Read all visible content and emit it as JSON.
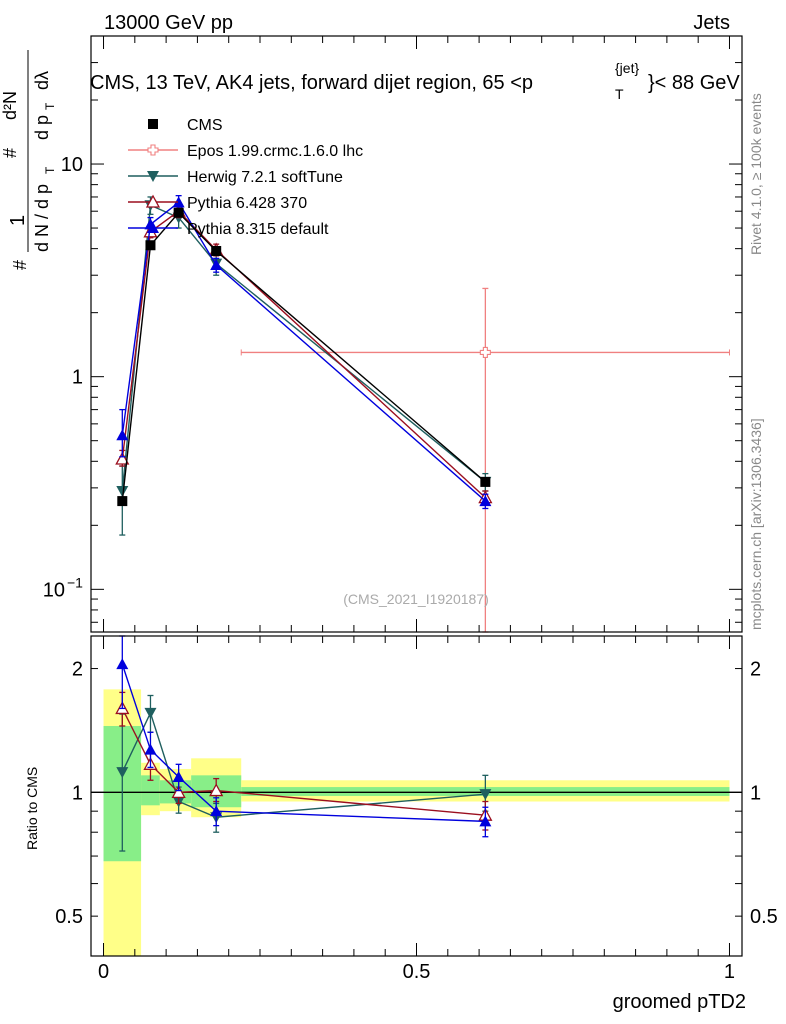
{
  "header": {
    "energy_label": "13000 GeV pp",
    "category_label": "Jets",
    "title_main": "CMS, 13 TeV, AK4 jets, forward dijet region, 65 <p",
    "title_sup": "{jet}",
    "title_sub": "T",
    "title_end": "}< 88 GeV",
    "watermark": "(CMS_2021_I1920187)"
  },
  "side_labels": {
    "rivet": "Rivet 4.1.0, ≥ 100k events",
    "mcplots": "mcplots.cern.ch [arXiv:1306.3436]"
  },
  "colors": {
    "cms": "#000000",
    "epos": "#f08080",
    "herwig": "#1f5f5f",
    "pythia6": "#9b0f1f",
    "pythia8": "#0000dd",
    "band_inner": "#88ee88",
    "band_outer": "#ffff88"
  },
  "chart_data": [
    {
      "type": "scatter",
      "panel": "main",
      "ylabel": "1/N dN/dp_T dλ (#/# d²N/dp_T dλ)",
      "yscale": "log",
      "ylim": [
        0.063,
        40
      ],
      "xlim": [
        -0.02,
        1.02
      ],
      "y_ticks": [
        {
          "value": 0.1,
          "label": "10",
          "exp": "−1"
        },
        {
          "value": 1,
          "label": "1",
          "exp": ""
        },
        {
          "value": 10,
          "label": "10",
          "exp": ""
        }
      ],
      "legend": [
        {
          "key": "cms",
          "label": "CMS"
        },
        {
          "key": "epos",
          "label": "Epos 1.99.crmc.1.6.0 lhc"
        },
        {
          "key": "herwig",
          "label": "Herwig 7.2.1 softTune"
        },
        {
          "key": "pythia6",
          "label": "Pythia 6.428 370"
        },
        {
          "key": "pythia8",
          "label": "Pythia 8.315 default"
        }
      ],
      "series": [
        {
          "key": "cms",
          "name": "CMS",
          "marker": "square",
          "x": [
            0.03,
            0.075,
            0.12,
            0.18,
            0.61
          ],
          "y": [
            0.26,
            4.15,
            5.9,
            3.9,
            0.32
          ]
        },
        {
          "key": "epos",
          "name": "Epos 1.99.crmc.1.6.0 lhc",
          "marker": "open-cross",
          "x": [
            0.61
          ],
          "y": [
            1.3
          ],
          "xerr_low": [
            0.22
          ],
          "xerr_high": [
            1.0
          ],
          "yerr_low": [
            0.0
          ],
          "yerr_high": [
            2.6
          ]
        },
        {
          "key": "herwig",
          "name": "Herwig 7.2.1 softTune",
          "marker": "triangle-down",
          "x": [
            0.03,
            0.075,
            0.12,
            0.18,
            0.61
          ],
          "y": [
            0.29,
            6.4,
            5.6,
            3.4,
            0.32
          ],
          "yerr_low": [
            0.18,
            5.8,
            5.0,
            3.0,
            0.29
          ],
          "yerr_high": [
            0.38,
            7.0,
            6.3,
            3.8,
            0.35
          ]
        },
        {
          "key": "pythia6",
          "name": "Pythia 6.428 370",
          "marker": "open-triangle-up",
          "x": [
            0.03,
            0.075,
            0.12,
            0.18,
            0.61
          ],
          "y": [
            0.41,
            4.8,
            6.0,
            3.95,
            0.27
          ],
          "yerr_low": [
            0.38,
            4.5,
            5.6,
            3.7,
            0.25
          ],
          "yerr_high": [
            0.45,
            5.1,
            6.4,
            4.2,
            0.29
          ]
        },
        {
          "key": "pythia8",
          "name": "Pythia 8.315 default",
          "marker": "triangle-up",
          "x": [
            0.03,
            0.075,
            0.12,
            0.18,
            0.61
          ],
          "y": [
            0.53,
            5.2,
            6.6,
            3.35,
            0.26
          ],
          "yerr_low": [
            0.42,
            4.8,
            6.1,
            3.1,
            0.24
          ],
          "yerr_high": [
            0.7,
            5.6,
            7.1,
            3.6,
            0.28
          ]
        }
      ]
    },
    {
      "type": "scatter",
      "panel": "ratio",
      "ylabel": "Ratio to CMS",
      "xlabel": "groomed pTD2",
      "yscale": "log",
      "ylim": [
        0.4,
        2.4
      ],
      "xlim": [
        -0.02,
        1.02
      ],
      "y_ticks": [
        {
          "value": 0.5,
          "label": "0.5"
        },
        {
          "value": 1,
          "label": "1"
        },
        {
          "value": 2,
          "label": "2"
        }
      ],
      "x_ticks": [
        {
          "value": 0,
          "label": "0"
        },
        {
          "value": 0.5,
          "label": "0.5"
        },
        {
          "value": 1,
          "label": "1"
        }
      ],
      "bands": [
        {
          "x_low": 0.0,
          "x_high": 0.06,
          "outer": [
            0.36,
            1.78
          ],
          "inner": [
            0.68,
            1.45
          ]
        },
        {
          "x_low": 0.06,
          "x_high": 0.09,
          "outer": [
            0.88,
            1.18
          ],
          "inner": [
            0.93,
            1.1
          ]
        },
        {
          "x_low": 0.09,
          "x_high": 0.14,
          "outer": [
            0.9,
            1.14
          ],
          "inner": [
            0.94,
            1.07
          ]
        },
        {
          "x_low": 0.14,
          "x_high": 0.22,
          "outer": [
            0.87,
            1.21
          ],
          "inner": [
            0.92,
            1.1
          ]
        },
        {
          "x_low": 0.22,
          "x_high": 1.0,
          "outer": [
            0.95,
            1.07
          ],
          "inner": [
            0.98,
            1.03
          ]
        }
      ],
      "series": [
        {
          "key": "herwig",
          "name": "Herwig 7.2.1 softTune",
          "marker": "triangle-down",
          "x": [
            0.03,
            0.075,
            0.12,
            0.18,
            0.61
          ],
          "y": [
            1.12,
            1.56,
            0.95,
            0.87,
            0.99
          ],
          "yerr_low": [
            0.72,
            1.4,
            0.89,
            0.8,
            0.9
          ],
          "yerr_high": [
            1.55,
            1.72,
            1.03,
            0.94,
            1.1
          ]
        },
        {
          "key": "pythia6",
          "name": "Pythia 6.428 370",
          "marker": "open-triangle-up",
          "x": [
            0.03,
            0.075,
            0.12,
            0.18,
            0.61
          ],
          "y": [
            1.6,
            1.17,
            1.0,
            1.01,
            0.88
          ],
          "yerr_low": [
            1.45,
            1.07,
            0.94,
            0.95,
            0.81
          ],
          "yerr_high": [
            1.75,
            1.27,
            1.07,
            1.08,
            0.95
          ]
        },
        {
          "key": "pythia8",
          "name": "Pythia 8.315 default",
          "marker": "triangle-up",
          "x": [
            0.03,
            0.075,
            0.12,
            0.18,
            0.61
          ],
          "y": [
            2.05,
            1.27,
            1.09,
            0.9,
            0.85
          ],
          "yerr_low": [
            1.6,
            1.15,
            1.01,
            0.83,
            0.78
          ],
          "yerr_high": [
            2.4,
            1.4,
            1.17,
            0.97,
            0.92
          ]
        }
      ]
    }
  ]
}
